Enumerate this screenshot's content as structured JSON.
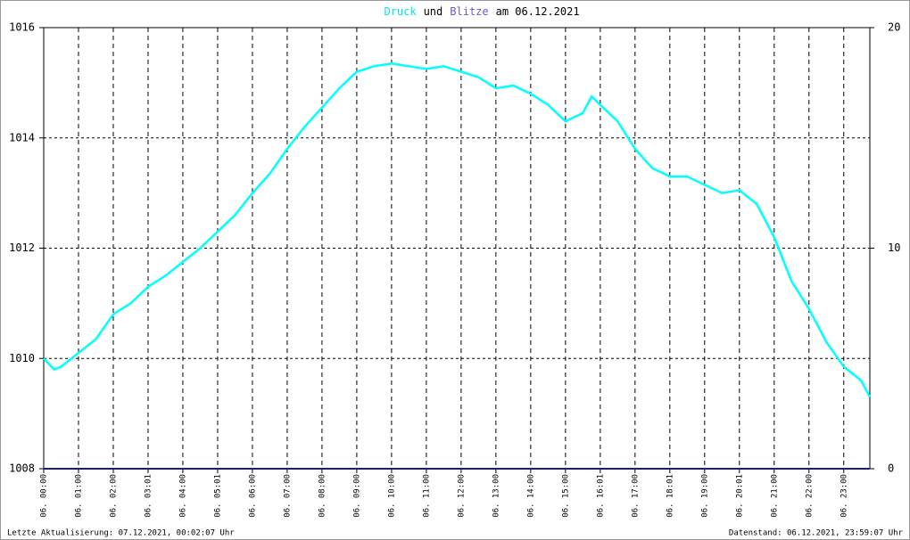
{
  "chart_data": {
    "type": "line",
    "title_parts": [
      {
        "text": "Druck",
        "color": "#00e5e5"
      },
      {
        "text": "und",
        "color": "#000000"
      },
      {
        "text": "Blitze",
        "color": "#6a5acd"
      },
      {
        "text": "am 06.12.2021",
        "color": "#000000"
      }
    ],
    "footer_left": "Letzte Aktualisierung: 07.12.2021, 00:02:07 Uhr",
    "footer_right": "Datenstand: 06.12.2021, 23:59:07 Uhr",
    "xlim": [
      0,
      23.75
    ],
    "xticks": [
      {
        "value": 0,
        "label": "06. 00:00"
      },
      {
        "value": 1,
        "label": "06. 01:00"
      },
      {
        "value": 2,
        "label": "06. 02:00"
      },
      {
        "value": 3,
        "label": "06. 03:01"
      },
      {
        "value": 4,
        "label": "06. 04:00"
      },
      {
        "value": 5,
        "label": "06. 05:01"
      },
      {
        "value": 6,
        "label": "06. 06:00"
      },
      {
        "value": 7,
        "label": "06. 07:00"
      },
      {
        "value": 8,
        "label": "06. 08:00"
      },
      {
        "value": 9,
        "label": "06. 09:00"
      },
      {
        "value": 10,
        "label": "06. 10:00"
      },
      {
        "value": 11,
        "label": "06. 11:00"
      },
      {
        "value": 12,
        "label": "06. 12:00"
      },
      {
        "value": 13,
        "label": "06. 13:00"
      },
      {
        "value": 14,
        "label": "06. 14:00"
      },
      {
        "value": 15,
        "label": "06. 15:00"
      },
      {
        "value": 16,
        "label": "06. 16:01"
      },
      {
        "value": 17,
        "label": "06. 17:00"
      },
      {
        "value": 18,
        "label": "06. 18:01"
      },
      {
        "value": 19,
        "label": "06. 19:00"
      },
      {
        "value": 20,
        "label": "06. 20:01"
      },
      {
        "value": 21,
        "label": "06. 21:00"
      },
      {
        "value": 22,
        "label": "06. 22:00"
      },
      {
        "value": 23,
        "label": "06. 23:00"
      }
    ],
    "ylim": [
      1008,
      1016
    ],
    "yticks": [
      1008,
      1010,
      1012,
      1014,
      1016
    ],
    "y2lim": [
      0,
      20
    ],
    "y2ticks": [
      0,
      10,
      20
    ],
    "grid": true,
    "series": [
      {
        "color": "#00ffff",
        "x": [
          0,
          0.3,
          0.5,
          1,
          1.5,
          2,
          2.5,
          3,
          3.5,
          4,
          4.5,
          5,
          5.5,
          6,
          6.5,
          7,
          7.5,
          8,
          8.5,
          9,
          9.5,
          10,
          10.5,
          11,
          11.5,
          12,
          12.5,
          13,
          13.5,
          14,
          14.5,
          15,
          15.5,
          15.75,
          16,
          16.5,
          17,
          17.5,
          18,
          18.5,
          19,
          19.5,
          20,
          20.5,
          21,
          21.5,
          22,
          22.5,
          23,
          23.5,
          23.75
        ],
        "values": [
          1010.0,
          1009.8,
          1009.85,
          1010.1,
          1010.35,
          1010.8,
          1011.0,
          1011.3,
          1011.5,
          1011.75,
          1012.0,
          1012.3,
          1012.6,
          1013.0,
          1013.35,
          1013.8,
          1014.2,
          1014.55,
          1014.9,
          1015.2,
          1015.3,
          1015.35,
          1015.3,
          1015.25,
          1015.3,
          1015.2,
          1015.1,
          1014.9,
          1014.95,
          1014.8,
          1014.6,
          1014.3,
          1014.45,
          1014.75,
          1014.6,
          1014.3,
          1013.8,
          1013.45,
          1013.3,
          1013.3,
          1013.15,
          1013.0,
          1013.05,
          1012.8,
          1012.2,
          1011.4,
          1010.9,
          1010.3,
          1009.85,
          1009.6,
          1009.3
        ]
      },
      {
        "color": "#1a1a80",
        "axis": "y2",
        "x": [
          0,
          23.75
        ],
        "values": [
          0,
          0
        ]
      }
    ]
  }
}
